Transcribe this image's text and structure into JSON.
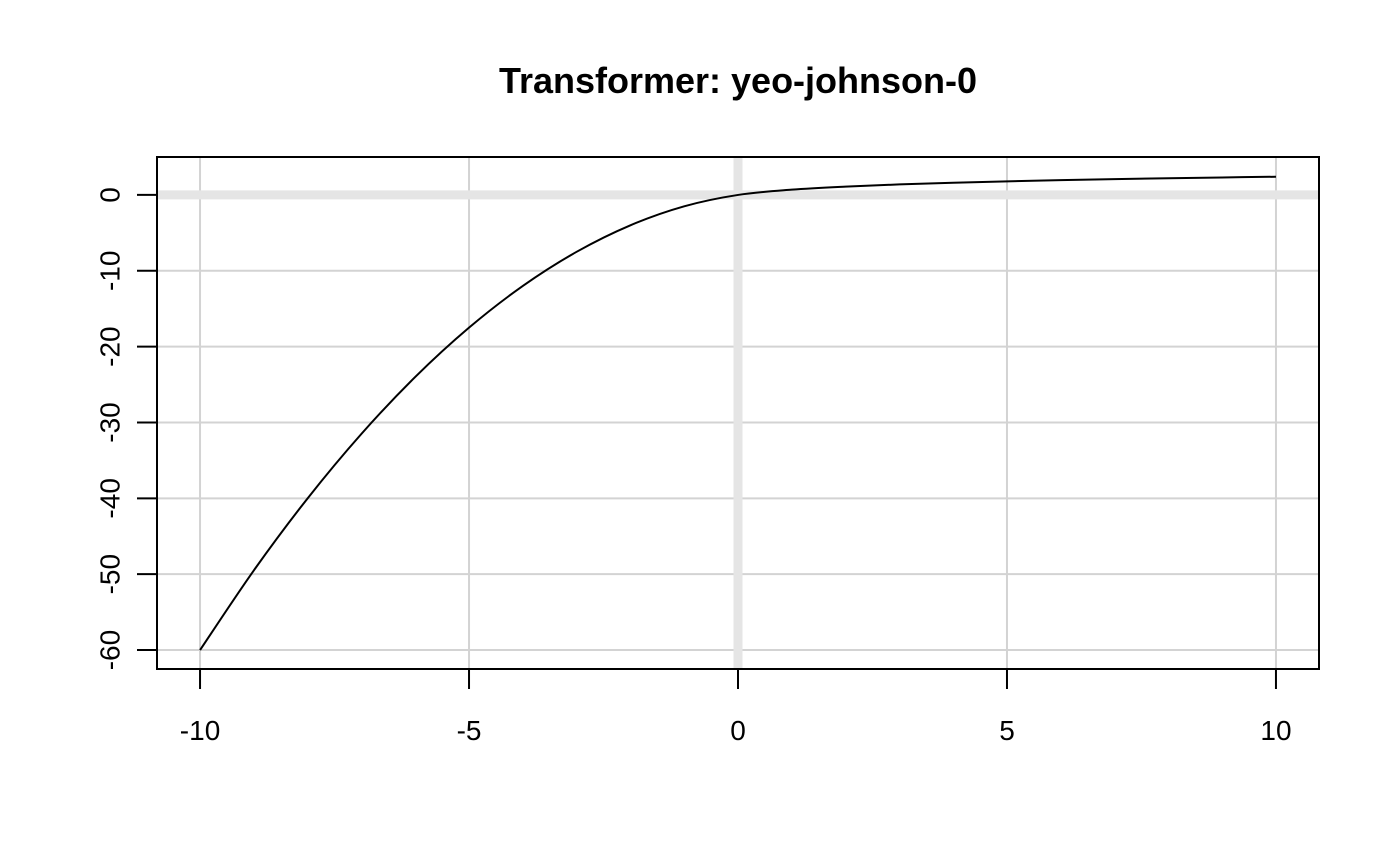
{
  "chart_data": {
    "type": "line",
    "title": "Transformer: yeo-johnson-0",
    "xlabel": "",
    "ylabel": "",
    "xlim": [
      -10.8,
      10.8
    ],
    "ylim": [
      -62.5,
      5
    ],
    "x_ticks": [
      -10,
      -5,
      0,
      5,
      10
    ],
    "x_tick_labels": [
      "-10",
      "-5",
      "0",
      "5",
      "10"
    ],
    "y_ticks": [
      0,
      -10,
      -20,
      -30,
      -40,
      -50,
      -60
    ],
    "y_tick_labels": [
      "0",
      "-10",
      "-20",
      "-30",
      "-40",
      "-50",
      "-60"
    ],
    "grid": true,
    "reference_lines": {
      "x": 0,
      "y": 0,
      "color": "#e5e5e5"
    },
    "series": [
      {
        "color": "#000000",
        "x": [
          -10,
          -9,
          -8,
          -7,
          -6,
          -5,
          -4,
          -3,
          -2,
          -1,
          0,
          1,
          2,
          3,
          4,
          5,
          6,
          7,
          8,
          9,
          10
        ],
        "y": [
          -60,
          -49.5,
          -40,
          -31.5,
          -24,
          -17.5,
          -12,
          -7.5,
          -4,
          -1.5,
          0,
          0.693,
          1.099,
          1.386,
          1.609,
          1.792,
          1.946,
          2.079,
          2.197,
          2.303,
          2.398
        ]
      }
    ]
  }
}
